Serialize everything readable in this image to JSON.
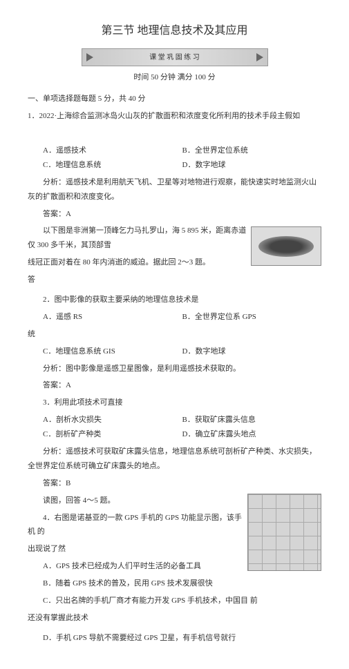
{
  "title": "第三节  地理信息技术及其应用",
  "banner_text": "课 堂 巩 固 练 习",
  "subtitle": "时间 50 分钟    满分 100 分",
  "sec1_title": "一、单项选择题每题    5 分，共 40 分",
  "q1_stem": "1．2022·上海综合监测冰岛火山灰的扩散面积和浓度变化所利用的技术手段主假如",
  "q1_optA": "A．遥感技术",
  "q1_optB": "B．全世界定位系统",
  "q1_optC": "C．地理信息系统",
  "q1_optD": "D．数字地球",
  "q1_analysis": "分析：遥感技术是利用航天飞机、卫星等对地物进行观察，能快速实时地监测火山灰的扩散面积和浓度变化。",
  "q1_ans": "答案：A",
  "p2_line1": "以下图是非洲第一顶峰乞力马扎罗山，海    5 895 米，距离赤道仅    300 多千米，其顶部雪",
  "p2_line2": "线冠正面对着在 80 年内消逝的威迫。据此回    2～3 题。",
  "p2_line3": "答",
  "q2_stem": "2．图中影像的获取主要采纳的地理信息技术是",
  "q2_optA": "A．遥感 RS",
  "q2_optB": "B．全世界定位系  GPS",
  "q2_optB2": "统",
  "q2_optC": "C．地理信息系统  GIS",
  "q2_optD": "D．数字地球",
  "q2_analysis": "分析：图中影像是遥感卫星图像，是利用遥感技术获取的。",
  "q2_ans": "答案：A",
  "q3_stem": "3．利用此项技术可直接",
  "q3_optA": "A．剖析水灾损失",
  "q3_optB": "B．获取矿床露头信息",
  "q3_optC": "C．剖析矿产种类",
  "q3_optD": "D．确立矿床露头地点",
  "q3_analysis": "分析：遥感技术可获取矿床露头信息，地理信息系统可剖析矿产种类、水灾损失，全世界定位系统可确立矿床露头的地点。",
  "q3_ans": "答案：B",
  "p4_line1": "读图，回答 4～5 题。",
  "q4_stem": "4．右图是诺基亚的一款  GPS 手机的 GPS 功能显示图，该手机        的",
  "q4_stem2": "出现说了然",
  "q4_optA": "A．GPS 技术已经成为人们平时生活的必备工具",
  "q4_optB": "B．随着 GPS 技术的普及，民用  GPS 技术发展很快",
  "q4_optC": "C．只出名牌的手机厂商才有能力开发    GPS 手机技术，中国目            前",
  "q4_optC2": "还没有掌握此技术",
  "q4_optD": "D．手机 GPS 导航不需要经过  GPS 卫星，有手机信号就行"
}
